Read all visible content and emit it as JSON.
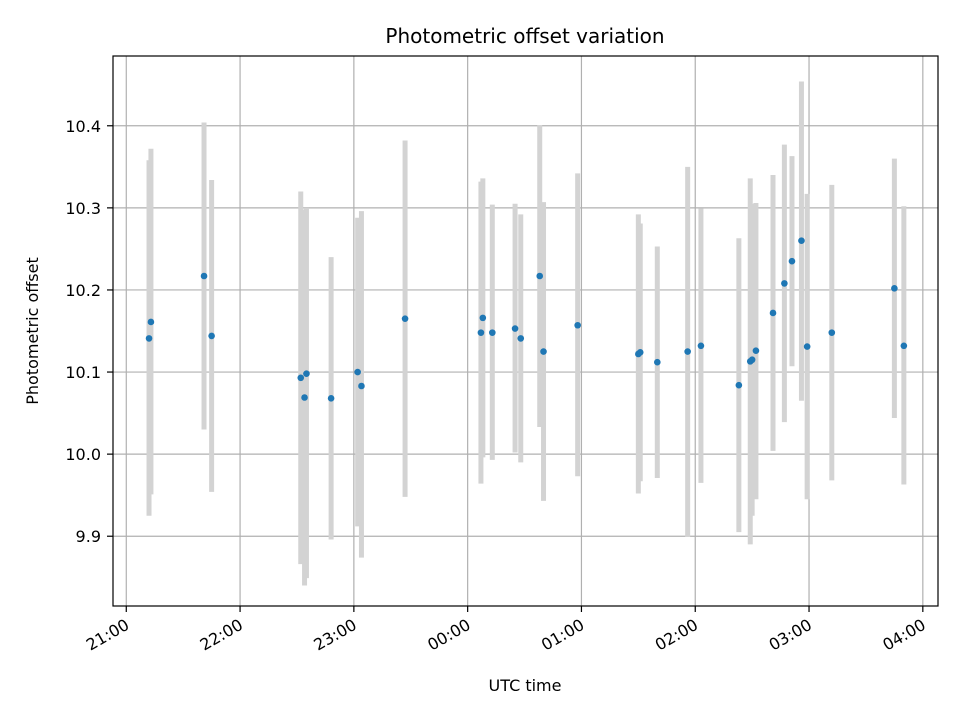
{
  "chart_data": {
    "type": "scatter",
    "title": "Photometric offset variation",
    "xlabel": "UTC time",
    "ylabel": "Photometric offset",
    "x_unit": "UTC hh:mm, times past midnight on following day",
    "xlim": [
      "20:53",
      "04:08"
    ],
    "ylim": [
      9.815,
      10.485
    ],
    "grid": true,
    "x_ticks": [
      "21:00",
      "22:00",
      "23:00",
      "00:00",
      "01:00",
      "02:00",
      "03:00",
      "04:00"
    ],
    "y_ticks": [
      9.9,
      10.0,
      10.1,
      10.2,
      10.3,
      10.4
    ],
    "y_tick_labels": [
      "9.9",
      "10.0",
      "10.1",
      "10.2",
      "10.3",
      "10.4"
    ],
    "colors": {
      "point": "#1f77b4",
      "errorbar": "#d3d3d3",
      "grid": "#b0b0b0"
    },
    "points": [
      {
        "x": "21:12",
        "y": 10.141,
        "ylo": 9.925,
        "yhi": 10.358
      },
      {
        "x": "21:13",
        "y": 10.161,
        "ylo": 9.951,
        "yhi": 10.372
      },
      {
        "x": "21:41",
        "y": 10.217,
        "ylo": 10.03,
        "yhi": 10.404
      },
      {
        "x": "21:45",
        "y": 10.144,
        "ylo": 9.954,
        "yhi": 10.334
      },
      {
        "x": "22:32",
        "y": 10.093,
        "ylo": 9.866,
        "yhi": 10.32
      },
      {
        "x": "22:34",
        "y": 10.069,
        "ylo": 9.84,
        "yhi": 10.298
      },
      {
        "x": "22:35",
        "y": 10.098,
        "ylo": 9.849,
        "yhi": 10.3
      },
      {
        "x": "22:48",
        "y": 10.068,
        "ylo": 9.896,
        "yhi": 10.24
      },
      {
        "x": "23:02",
        "y": 10.1,
        "ylo": 9.912,
        "yhi": 10.288
      },
      {
        "x": "23:04",
        "y": 10.083,
        "ylo": 9.874,
        "yhi": 10.296
      },
      {
        "x": "23:27",
        "y": 10.165,
        "ylo": 9.948,
        "yhi": 10.382
      },
      {
        "x": "00:07",
        "y": 10.148,
        "ylo": 9.964,
        "yhi": 10.332
      },
      {
        "x": "00:08",
        "y": 10.166,
        "ylo": 9.996,
        "yhi": 10.336
      },
      {
        "x": "00:13",
        "y": 10.148,
        "ylo": 9.993,
        "yhi": 10.304
      },
      {
        "x": "00:25",
        "y": 10.153,
        "ylo": 10.002,
        "yhi": 10.305
      },
      {
        "x": "00:28",
        "y": 10.141,
        "ylo": 9.99,
        "yhi": 10.292
      },
      {
        "x": "00:38",
        "y": 10.217,
        "ylo": 10.033,
        "yhi": 10.401
      },
      {
        "x": "00:40",
        "y": 10.125,
        "ylo": 9.943,
        "yhi": 10.307
      },
      {
        "x": "00:58",
        "y": 10.157,
        "ylo": 9.973,
        "yhi": 10.342
      },
      {
        "x": "01:30",
        "y": 10.122,
        "ylo": 9.952,
        "yhi": 10.292
      },
      {
        "x": "01:31",
        "y": 10.124,
        "ylo": 9.967,
        "yhi": 10.281
      },
      {
        "x": "01:40",
        "y": 10.112,
        "ylo": 9.971,
        "yhi": 10.253
      },
      {
        "x": "01:56",
        "y": 10.125,
        "ylo": 9.899,
        "yhi": 10.35
      },
      {
        "x": "02:03",
        "y": 10.132,
        "ylo": 9.965,
        "yhi": 10.299
      },
      {
        "x": "02:23",
        "y": 10.084,
        "ylo": 9.905,
        "yhi": 10.263
      },
      {
        "x": "02:29",
        "y": 10.113,
        "ylo": 9.89,
        "yhi": 10.336
      },
      {
        "x": "02:30",
        "y": 10.115,
        "ylo": 9.925,
        "yhi": 10.305
      },
      {
        "x": "02:32",
        "y": 10.126,
        "ylo": 9.945,
        "yhi": 10.306
      },
      {
        "x": "02:41",
        "y": 10.172,
        "ylo": 10.004,
        "yhi": 10.34
      },
      {
        "x": "02:47",
        "y": 10.208,
        "ylo": 10.039,
        "yhi": 10.377
      },
      {
        "x": "02:51",
        "y": 10.235,
        "ylo": 10.107,
        "yhi": 10.363
      },
      {
        "x": "02:56",
        "y": 10.26,
        "ylo": 10.065,
        "yhi": 10.454
      },
      {
        "x": "02:59",
        "y": 10.131,
        "ylo": 9.945,
        "yhi": 10.317
      },
      {
        "x": "03:12",
        "y": 10.148,
        "ylo": 9.968,
        "yhi": 10.328
      },
      {
        "x": "03:45",
        "y": 10.202,
        "ylo": 10.044,
        "yhi": 10.36
      },
      {
        "x": "03:50",
        "y": 10.132,
        "ylo": 9.963,
        "yhi": 10.302
      }
    ]
  }
}
